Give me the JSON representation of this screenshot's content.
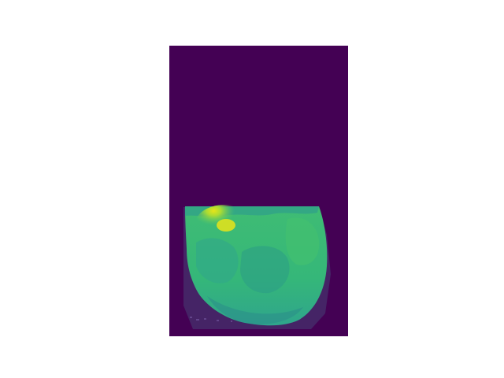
{
  "figure": {
    "colormap": "viridis",
    "colors": {
      "background": "#440154",
      "band_purple": "#462868",
      "deep_green": "#2a8a8a",
      "teal": "#2fa58c",
      "green": "#3fbc74",
      "light_green": "#5ec962",
      "lime": "#a8db34",
      "yellow": "#e7e419",
      "page_bg": "#ffffff"
    },
    "axes_visible": false
  }
}
